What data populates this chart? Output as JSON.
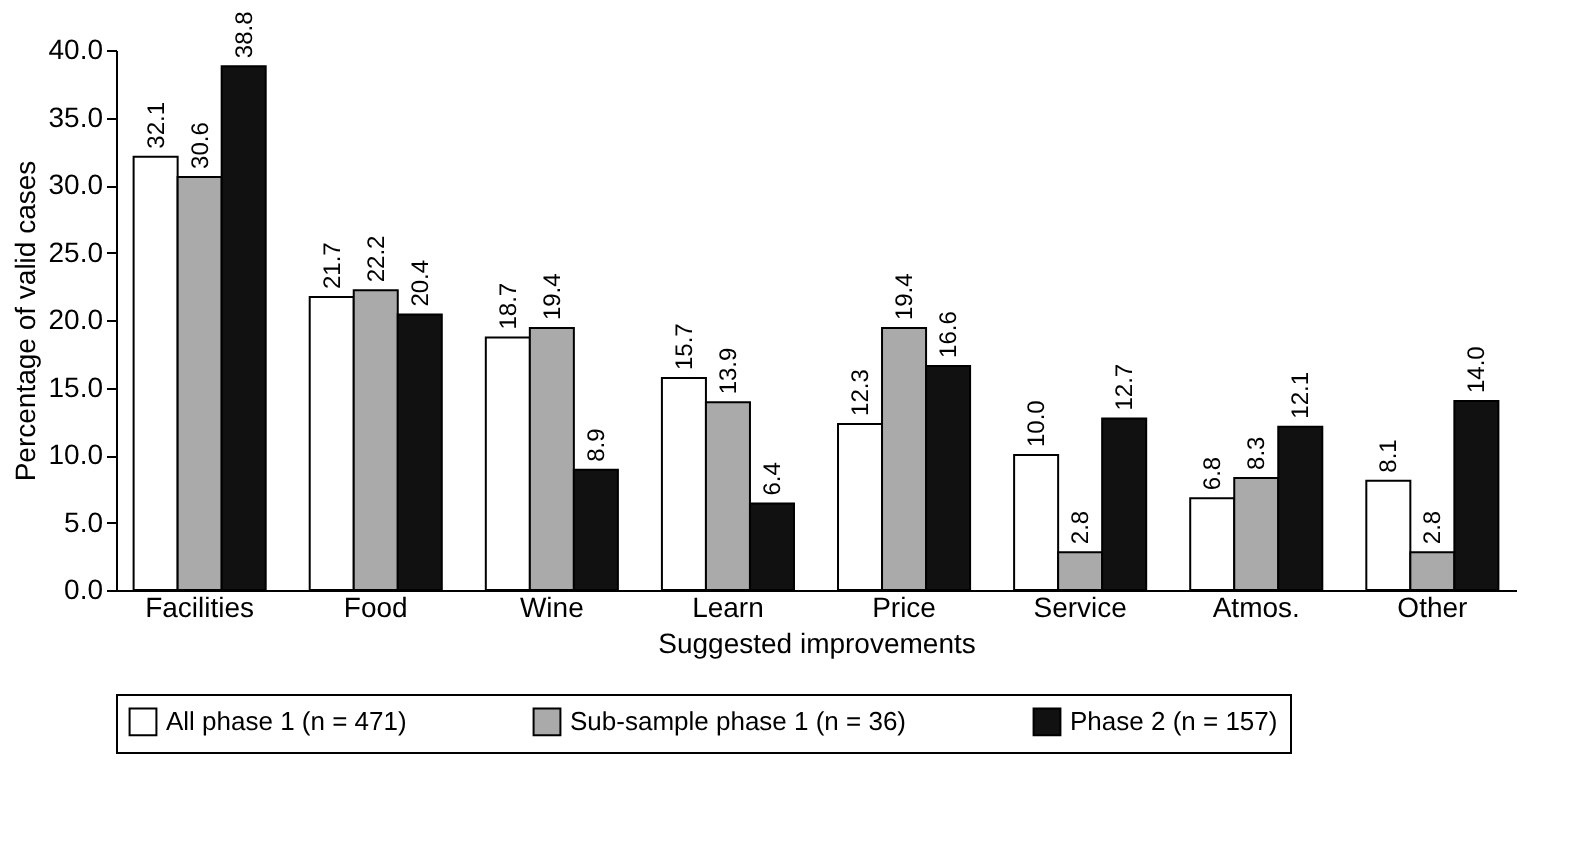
{
  "chart_data": {
    "type": "bar",
    "xlabel": "Suggested improvements",
    "ylabel": "Percentage of valid cases",
    "categories": [
      "Facilities",
      "Food",
      "Wine",
      "Learn",
      "Price",
      "Service",
      "Atmos.",
      "Other"
    ],
    "series": [
      {
        "name": "All phase 1 (n = 471)",
        "color": "#ffffff",
        "values": [
          32.1,
          21.7,
          18.7,
          15.7,
          12.3,
          10.0,
          6.8,
          8.1
        ],
        "value_labels": [
          "32.1",
          "21.7",
          "18.7",
          "15.7",
          "12.3",
          "10.0",
          "6.8",
          "8.1"
        ]
      },
      {
        "name": "Sub-sample phase 1 (n = 36)",
        "color": "#aaaaaa",
        "values": [
          30.6,
          22.2,
          19.4,
          13.9,
          19.4,
          2.8,
          8.3,
          2.8
        ],
        "value_labels": [
          "30.6",
          "22.2",
          "19.4",
          "13.9",
          "19.4",
          "2.8",
          "8.3",
          "2.8"
        ]
      },
      {
        "name": "Phase 2 (n = 157)",
        "color": "#111111",
        "values": [
          38.8,
          20.4,
          8.9,
          6.4,
          16.6,
          12.7,
          12.1,
          14.0
        ],
        "value_labels": [
          "38.8",
          "20.4",
          "8.9",
          "6.4",
          "16.6",
          "12.7",
          "12.1",
          "14.0"
        ]
      }
    ],
    "ylim": [
      0,
      40
    ],
    "yticks": [
      {
        "value": 0,
        "label": "0.0"
      },
      {
        "value": 5,
        "label": "5.0"
      },
      {
        "value": 10,
        "label": "10.0"
      },
      {
        "value": 15,
        "label": "15.0"
      },
      {
        "value": 20,
        "label": "20.0"
      },
      {
        "value": 25,
        "label": "25.0"
      },
      {
        "value": 30,
        "label": "30.0"
      },
      {
        "value": 35,
        "label": "35.0"
      },
      {
        "value": 40,
        "label": "40.0"
      }
    ],
    "grid": false,
    "legend": "bottom"
  }
}
